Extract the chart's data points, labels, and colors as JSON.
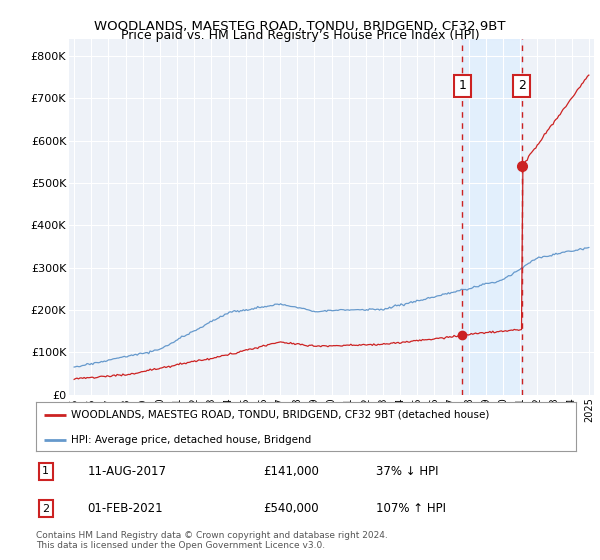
{
  "title": "WOODLANDS, MAESTEG ROAD, TONDU, BRIDGEND, CF32 9BT",
  "subtitle": "Price paid vs. HM Land Registry’s House Price Index (HPI)",
  "title_fontsize": 9.5,
  "subtitle_fontsize": 9,
  "ylabel_ticks": [
    "£0",
    "£100K",
    "£200K",
    "£300K",
    "£400K",
    "£500K",
    "£600K",
    "£700K",
    "£800K"
  ],
  "ytick_values": [
    0,
    100000,
    200000,
    300000,
    400000,
    500000,
    600000,
    700000,
    800000
  ],
  "ylim": [
    0,
    840000
  ],
  "xlim_start": 1994.7,
  "xlim_end": 2025.3,
  "hpi_color": "#6699cc",
  "price_color": "#cc2222",
  "shade_color": "#ddeeff",
  "marker1_date": 2017.62,
  "marker1_price": 141000,
  "marker2_date": 2021.08,
  "marker2_price": 540000,
  "legend_line1": "WOODLANDS, MAESTEG ROAD, TONDU, BRIDGEND, CF32 9BT (detached house)",
  "legend_line2": "HPI: Average price, detached house, Bridgend",
  "annot1_date": "11-AUG-2017",
  "annot1_price": "£141,000",
  "annot1_text": "37% ↓ HPI",
  "annot2_date": "01-FEB-2021",
  "annot2_price": "£540,000",
  "annot2_text": "107% ↑ HPI",
  "footer": "Contains HM Land Registry data © Crown copyright and database right 2024.\nThis data is licensed under the Open Government Licence v3.0.",
  "background_color": "#ffffff",
  "plot_bg_color": "#eef2f8"
}
